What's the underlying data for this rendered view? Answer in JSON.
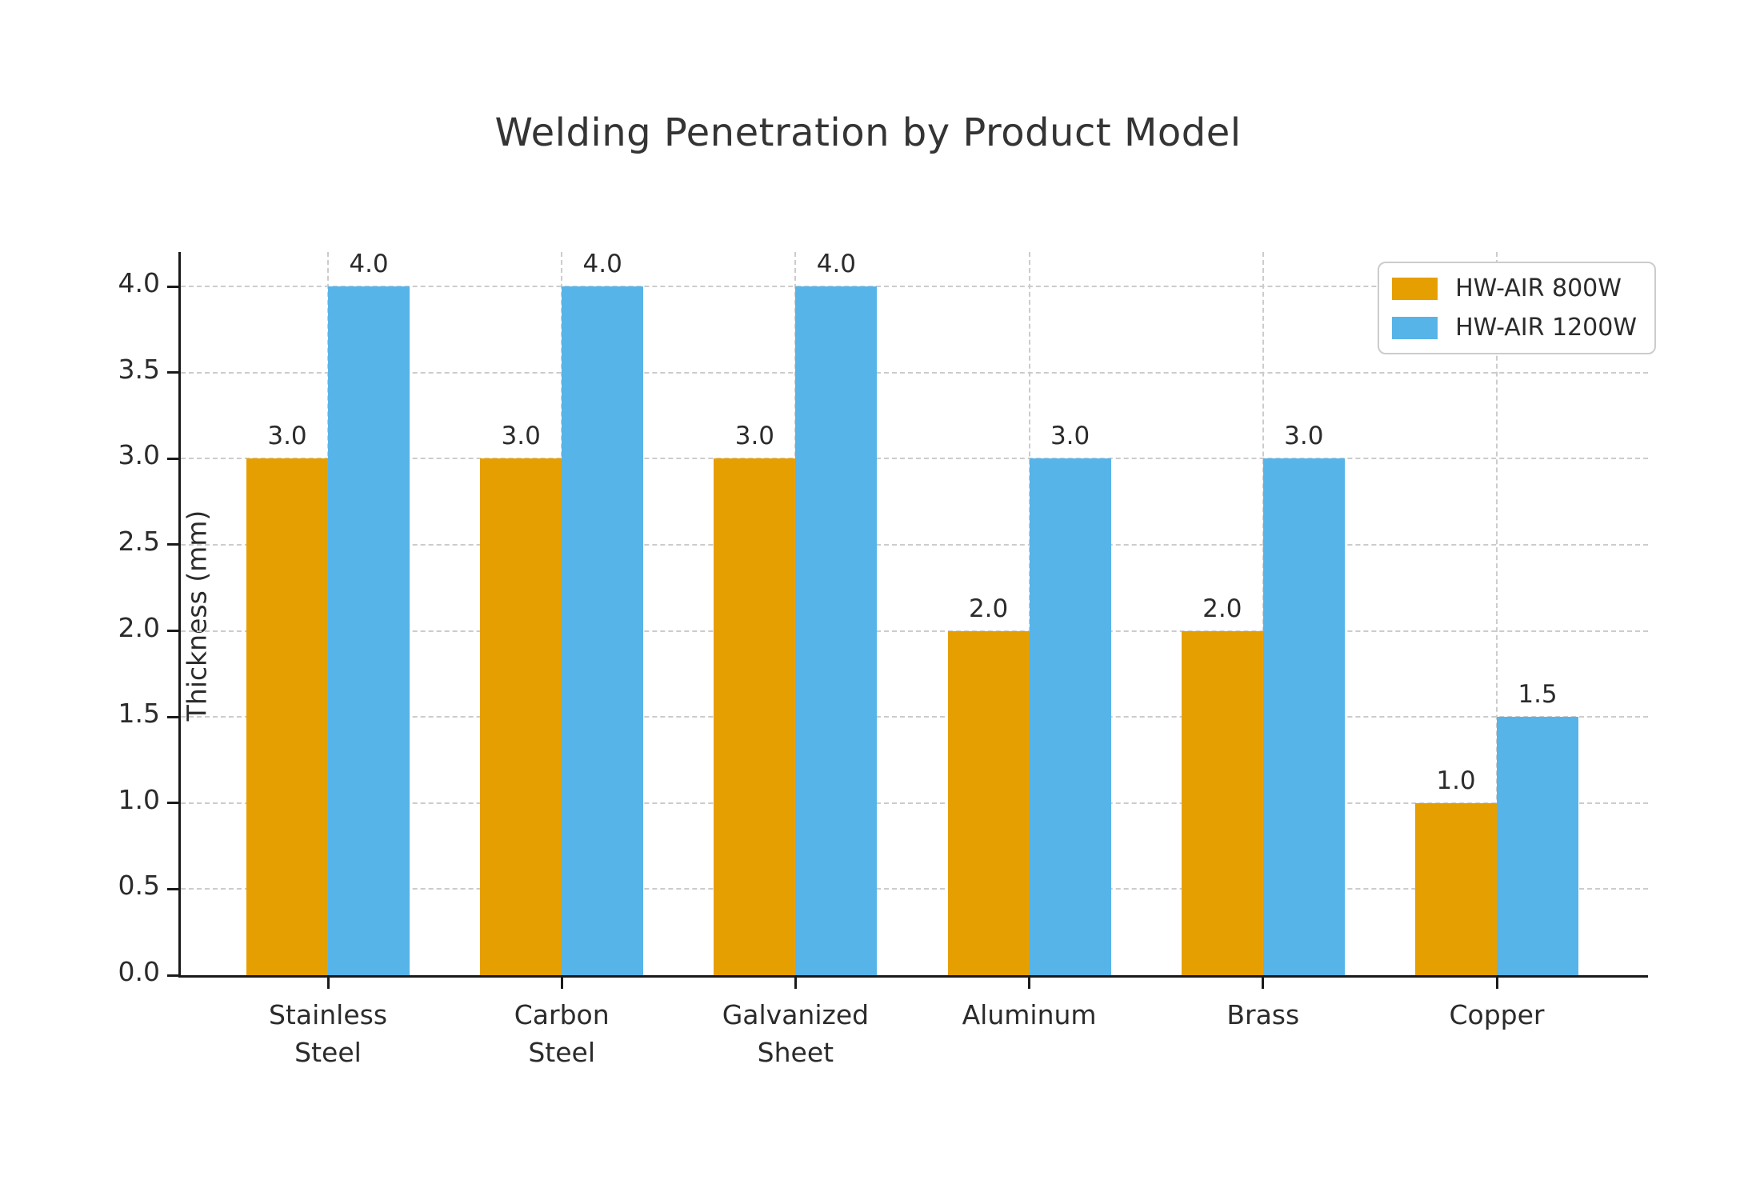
{
  "chart_data": {
    "type": "bar",
    "title": "Welding Penetration by Product Model",
    "xlabel": "",
    "ylabel": "Thickness (mm)",
    "categories": [
      "Stainless\nSteel",
      "Carbon\nSteel",
      "Galvanized\nSheet",
      "Aluminum",
      "Brass",
      "Copper"
    ],
    "series": [
      {
        "name": "HW-AIR 800W",
        "color": "#E69F00",
        "values": [
          3.0,
          3.0,
          3.0,
          2.0,
          2.0,
          1.0
        ]
      },
      {
        "name": "HW-AIR 1200W",
        "color": "#56B4E9",
        "values": [
          4.0,
          4.0,
          4.0,
          3.0,
          3.0,
          1.5
        ]
      }
    ],
    "ylim": [
      0,
      4.2
    ],
    "yticks": [
      0.0,
      0.5,
      1.0,
      1.5,
      2.0,
      2.5,
      3.0,
      3.5,
      4.0
    ],
    "grid": "dashed horizontal and vertical",
    "legend_position": "upper right",
    "value_labels": "one decimal above each bar"
  },
  "colors": {
    "axis": "#1a1a1a",
    "grid": "#cccccc",
    "text": "#2b2b2b",
    "background": "#ffffff"
  }
}
